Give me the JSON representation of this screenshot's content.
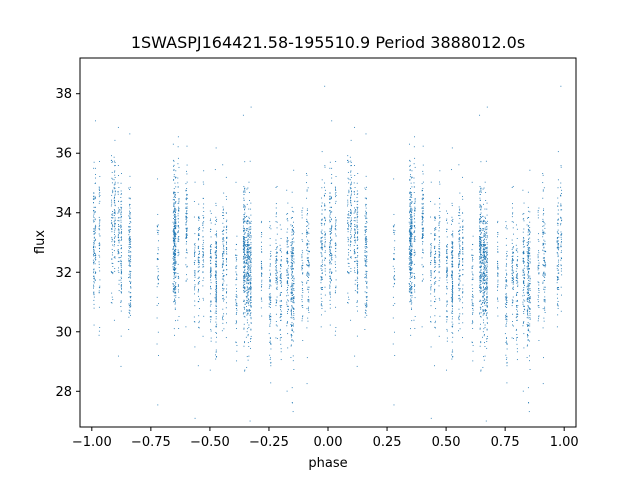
{
  "chart_data": {
    "type": "scatter",
    "title": "1SWASPJ164421.58-195510.9 Period 3888012.0s",
    "xlabel": "phase",
    "ylabel": "flux",
    "xlim": [
      -1.05,
      1.05
    ],
    "ylim": [
      26.8,
      39.2
    ],
    "xticks": [
      -1.0,
      -0.75,
      -0.5,
      -0.25,
      0.0,
      0.25,
      0.5,
      0.75,
      1.0
    ],
    "xtick_labels": [
      "−1.00",
      "−0.75",
      "−0.50",
      "−0.25",
      "0.00",
      "0.25",
      "0.50",
      "0.75",
      "1.00"
    ],
    "yticks": [
      28,
      30,
      32,
      34,
      36,
      38
    ],
    "ytick_labels": [
      "28",
      "30",
      "32",
      "34",
      "36",
      "38"
    ],
    "grid": false,
    "series": [
      {
        "color": "#1f77b4",
        "profile": {
          "phase": [
            0.0,
            0.05,
            0.1,
            0.15,
            0.2,
            0.25,
            0.3,
            0.35,
            0.4,
            0.45,
            0.5,
            0.55,
            0.6,
            0.65,
            0.7,
            0.75,
            0.8,
            0.85,
            0.9,
            0.95,
            1.0
          ],
          "flux": [
            33.0,
            33.5,
            33.3,
            32.5,
            32.8,
            33.3,
            33.2,
            33.0,
            32.8,
            32.3,
            32.0,
            32.2,
            32.0,
            32.3,
            32.5,
            31.8,
            31.7,
            32.0,
            32.3,
            32.8,
            33.0
          ]
        },
        "spread": 1.1
      }
    ]
  }
}
